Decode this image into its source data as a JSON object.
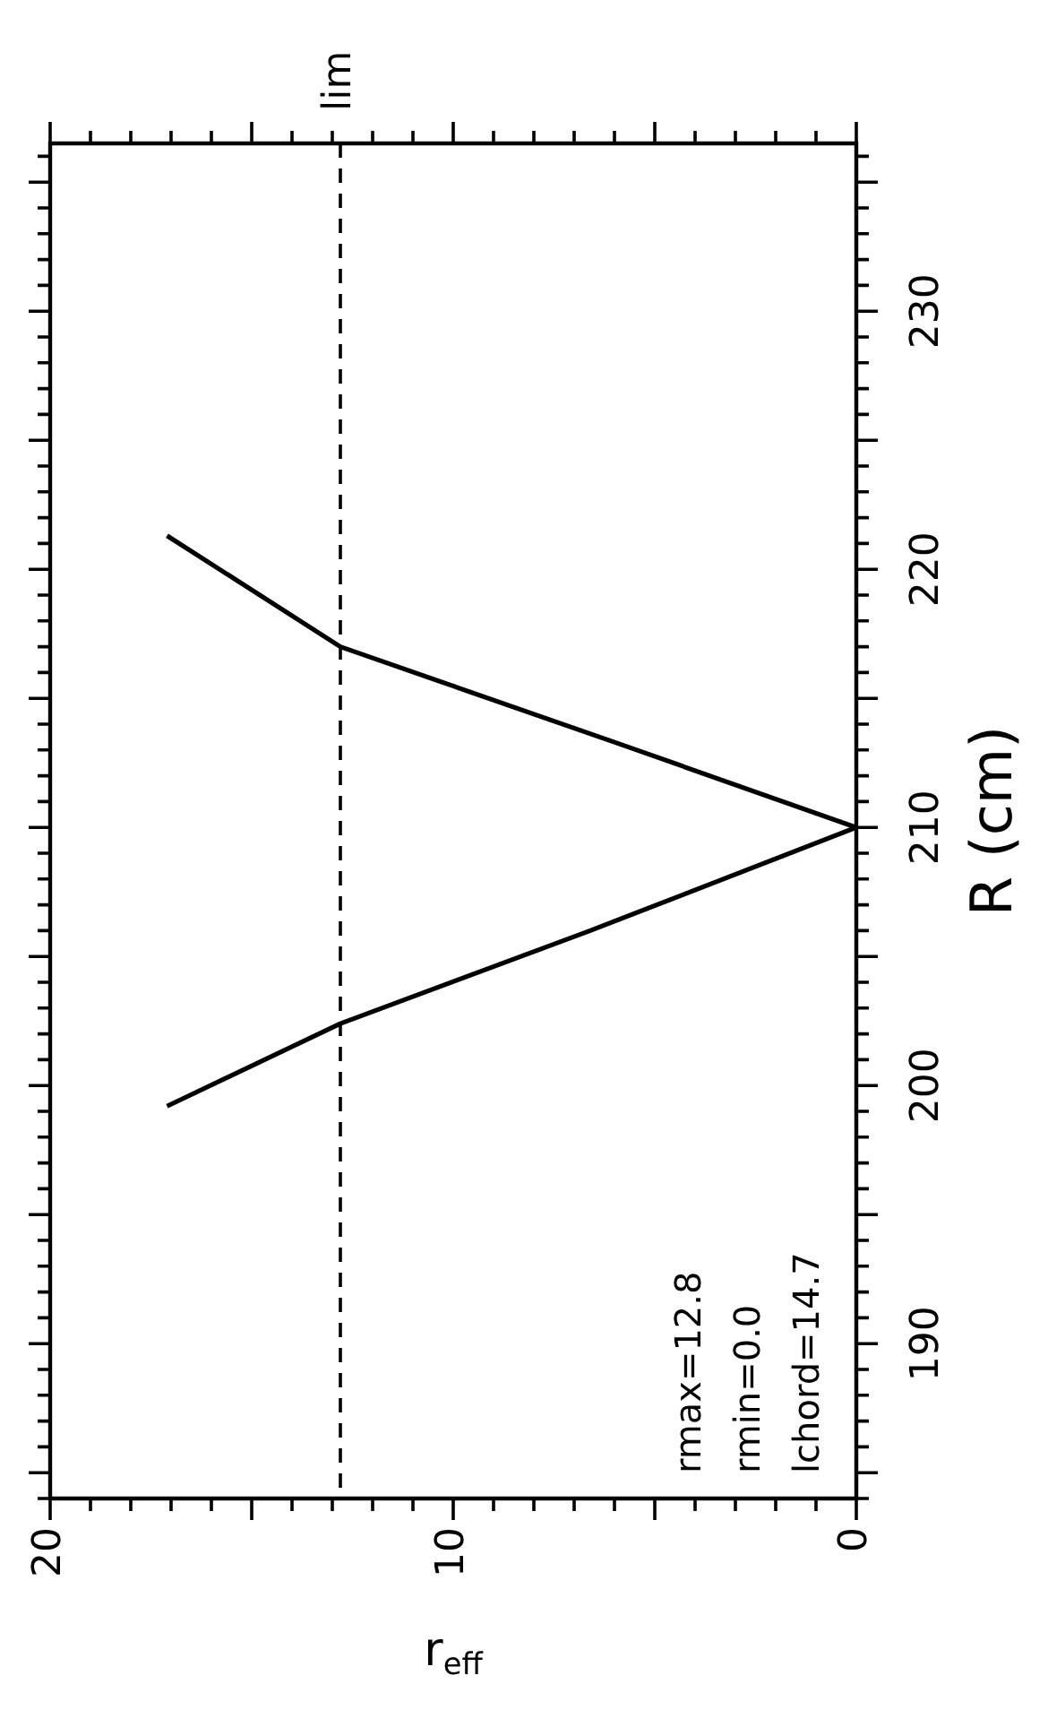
{
  "chart_data": {
    "type": "line",
    "xlabel": "r$_{eff}$",
    "ylabel": "R (cm)",
    "series": [
      {
        "color": "#000000",
        "x": [
          17.1,
          12.8,
          6.6,
          0,
          6,
          12.8,
          17.1
        ],
        "values": [
          199.2,
          202.4,
          206,
          210,
          213.3,
          217,
          221.3
        ]
      }
    ],
    "xlim": [
      20,
      0
    ],
    "xticks": [
      0,
      {
        "value": 1,
        "label": null
      },
      {
        "value": 2,
        "label": null
      },
      {
        "value": 3,
        "label": null
      },
      {
        "value": 4,
        "label": null
      },
      {
        "value": 5,
        "label": null
      },
      {
        "value": 6,
        "label": null
      },
      {
        "value": 7,
        "label": null
      },
      {
        "value": 8,
        "label": null
      },
      {
        "value": 9,
        "label": null
      },
      10,
      {
        "value": 11,
        "label": null
      },
      {
        "value": 12,
        "label": null
      },
      {
        "value": 13,
        "label": null
      },
      {
        "value": 14,
        "label": null
      },
      {
        "value": 15,
        "label": null
      },
      {
        "value": 16,
        "label": null
      },
      {
        "value": 17,
        "label": null
      },
      {
        "value": 18,
        "label": null
      },
      {
        "value": 19,
        "label": null
      },
      20
    ],
    "ylim": [
      184,
      236.5
    ],
    "yticks": [
      {
        "value": 184,
        "label": null
      },
      {
        "value": 185,
        "label": null
      },
      {
        "value": 186,
        "label": null
      },
      {
        "value": 187,
        "label": null
      },
      {
        "value": 188,
        "label": null
      },
      {
        "value": 189,
        "label": null
      },
      190,
      {
        "value": 191,
        "label": null
      },
      {
        "value": 192,
        "label": null
      },
      {
        "value": 193,
        "label": null
      },
      {
        "value": 194,
        "label": null
      },
      {
        "value": 195,
        "label": null
      },
      {
        "value": 196,
        "label": null
      },
      {
        "value": 197,
        "label": null
      },
      {
        "value": 198,
        "label": null
      },
      {
        "value": 199,
        "label": null
      },
      200,
      {
        "value": 201,
        "label": null
      },
      {
        "value": 202,
        "label": null
      },
      {
        "value": 203,
        "label": null
      },
      {
        "value": 204,
        "label": null
      },
      {
        "value": 205,
        "label": null
      },
      {
        "value": 206,
        "label": null
      },
      {
        "value": 207,
        "label": null
      },
      {
        "value": 208,
        "label": null
      },
      {
        "value": 209,
        "label": null
      },
      210,
      {
        "value": 211,
        "label": null
      },
      {
        "value": 212,
        "label": null
      },
      {
        "value": 213,
        "label": null
      },
      {
        "value": 214,
        "label": null
      },
      {
        "value": 215,
        "label": null
      },
      {
        "value": 216,
        "label": null
      },
      {
        "value": 217,
        "label": null
      },
      {
        "value": 218,
        "label": null
      },
      {
        "value": 219,
        "label": null
      },
      220,
      {
        "value": 221,
        "label": null
      },
      {
        "value": 222,
        "label": null
      },
      {
        "value": 223,
        "label": null
      },
      {
        "value": 224,
        "label": null
      },
      {
        "value": 225,
        "label": null
      },
      {
        "value": 226,
        "label": null
      },
      {
        "value": 227,
        "label": null
      },
      {
        "value": 228,
        "label": null
      },
      {
        "value": 229,
        "label": null
      },
      230,
      {
        "value": 231,
        "label": null
      },
      {
        "value": 232,
        "label": null
      },
      {
        "value": 233,
        "label": null
      },
      {
        "value": 234,
        "label": null
      },
      {
        "value": 235,
        "label": null
      },
      {
        "value": 236,
        "label": null
      }
    ],
    "ref_lines": [
      {
        "axis": "x",
        "value": 12.8,
        "label": "lim",
        "line_style": "dashed",
        "color": "#000000"
      }
    ],
    "annotations": [
      "rmax=12.8",
      "rmin=0.0",
      "lchord=14.7"
    ],
    "line_style": "solid",
    "marker": "none",
    "grid": false,
    "legend": false
  }
}
